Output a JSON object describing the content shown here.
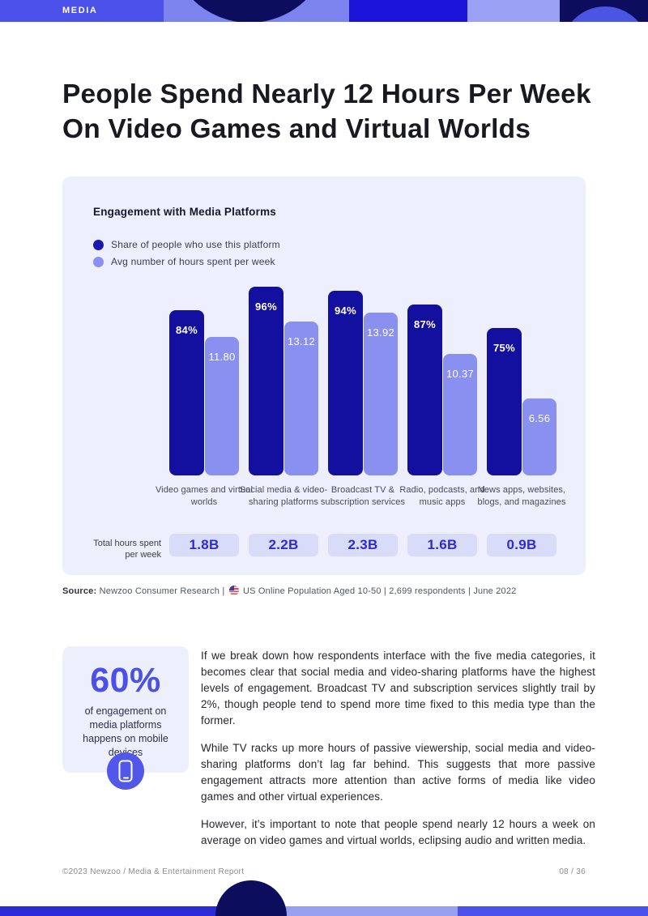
{
  "header": {
    "tag": "MEDIA"
  },
  "headline": {
    "line1": "People Spend Nearly 12 Hours Per Week",
    "line2": "On Video Games and Virtual Worlds"
  },
  "chart_data": {
    "type": "bar",
    "title": "Engagement with Media Platforms",
    "legend_position": "top-left",
    "grid": false,
    "categories": [
      "Video games and virtual worlds",
      "Social media & video-sharing platforms",
      "Broadcast TV & subscription services",
      "Radio, podcasts, and music apps",
      "News apps, websites, blogs, and magazines"
    ],
    "series": [
      {
        "name": "Share of people who use this platform",
        "unit": "%",
        "values": [
          84,
          96,
          94,
          87,
          75
        ],
        "labels": [
          "84%",
          "96%",
          "94%",
          "87%",
          "75%"
        ],
        "color": "#13109F"
      },
      {
        "name": "Avg number of hours spent per week",
        "unit": "hours",
        "values": [
          11.8,
          13.12,
          13.92,
          10.37,
          6.56
        ],
        "labels": [
          "11.80",
          "13.12",
          "13.92",
          "10.37",
          "6.56"
        ],
        "color": "#8A90F0"
      }
    ],
    "totals": {
      "label": "Total hours spent per week",
      "values": [
        "1.8B",
        "2.2B",
        "2.3B",
        "1.6B",
        "0.9B"
      ]
    }
  },
  "source": {
    "label": "Source:",
    "part1": "Newzoo Consumer Research |",
    "flag_icon": "us-flag-icon",
    "part2": "US Online Population Aged 10-50 | 2,699 respondents | June 2022"
  },
  "stat": {
    "value": "60%",
    "caption": "of engagement on media platforms happens on mobile devices",
    "icon": "mobile-phone-icon"
  },
  "paragraphs": [
    "If we break down how respondents interface with the five media categories, it becomes clear that social media and video-sharing platforms have the highest levels of engagement. Broadcast TV and subscription services slightly trail by 2%, though people tend to spend more time fixed to this media type than the former.",
    "While TV racks up more hours of passive viewership, social media and video-sharing platforms don’t lag far behind. This suggests that more passive engagement attracts more attention than active forms of media like video games and other virtual experiences.",
    "However, it’s important to note that people spend nearly 12 hours a week on average on video games and virtual worlds, eclipsing audio and written media."
  ],
  "footer": {
    "left": "©2023 Newzoo / Media & Entertainment Report",
    "right": "08 / 36"
  },
  "colors": {
    "brand_blue": "#4A50E8",
    "deep_navy": "#0D0D5E",
    "bar_dark": "#13109F",
    "bar_light": "#8A90F0",
    "card_bg": "#EDEFFC",
    "pill_bg": "#D9DCF8",
    "pill_text": "#2B2BD6"
  }
}
